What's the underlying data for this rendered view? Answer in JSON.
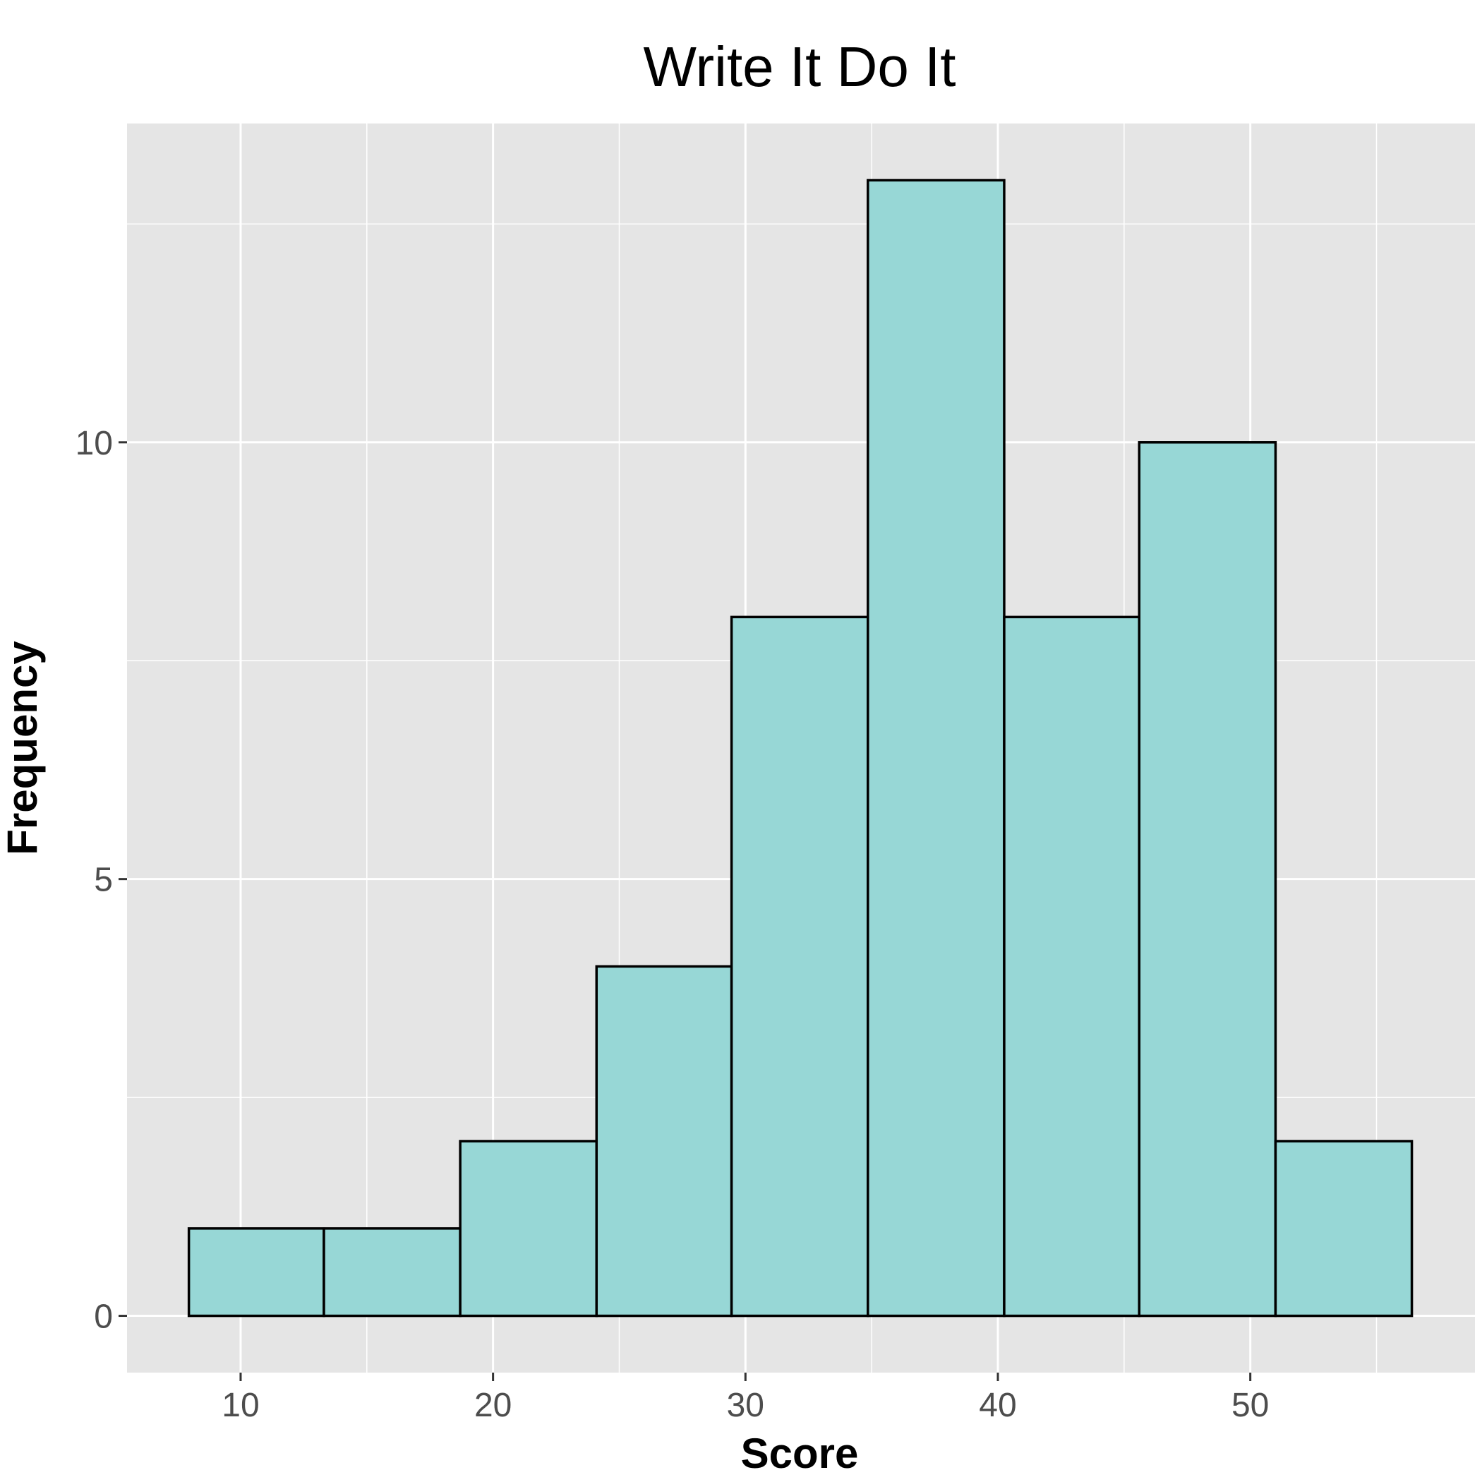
{
  "chart_data": {
    "type": "bar",
    "title": "Write It Do It",
    "xlabel": "Score",
    "ylabel": "Frequency",
    "bins": [
      {
        "start": 7.95,
        "end": 13.3,
        "count": 1
      },
      {
        "start": 13.3,
        "end": 18.7,
        "count": 1
      },
      {
        "start": 18.7,
        "end": 24.1,
        "count": 2
      },
      {
        "start": 24.1,
        "end": 29.45,
        "count": 4
      },
      {
        "start": 29.45,
        "end": 34.85,
        "count": 8
      },
      {
        "start": 34.85,
        "end": 40.25,
        "count": 13
      },
      {
        "start": 40.25,
        "end": 45.6,
        "count": 8
      },
      {
        "start": 45.6,
        "end": 51.0,
        "count": 10
      },
      {
        "start": 51.0,
        "end": 56.4,
        "count": 2
      }
    ],
    "xlim": [
      5.5,
      58.9
    ],
    "ylim": [
      -0.65,
      13.65
    ],
    "x_ticks": [
      10,
      20,
      30,
      40,
      50
    ],
    "x_tick_labels": [
      "10",
      "20",
      "30",
      "40",
      "50"
    ],
    "y_ticks": [
      0,
      5,
      10
    ],
    "y_tick_labels": [
      "0",
      "5",
      "10"
    ],
    "x_minor_gridlines": [
      15,
      25,
      35,
      45,
      55
    ],
    "y_minor_gridlines": [
      2.5,
      7.5,
      12.5
    ],
    "grid": true,
    "colors": {
      "bar_fill": "#97D7D6",
      "bar_stroke": "#000000",
      "panel_background": "#E5E5E5",
      "gridline": "#FFFFFF"
    }
  }
}
